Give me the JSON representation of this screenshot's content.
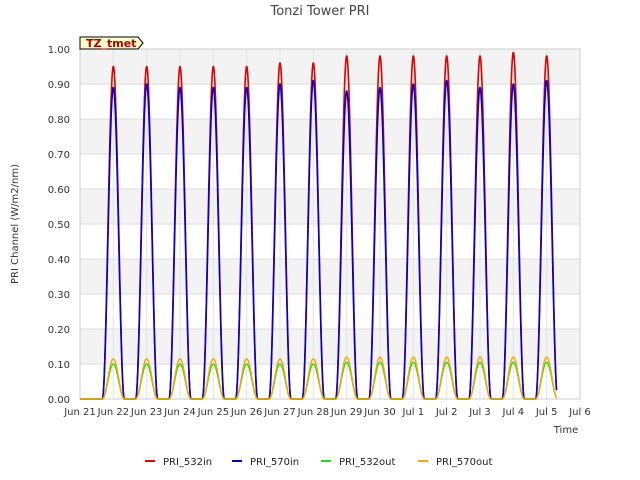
{
  "chart_data": {
    "type": "line",
    "title": "Tonzi Tower PRI",
    "xlabel": "Time",
    "ylabel": "PRI Channel (W/m2/nm)",
    "ylim": [
      0,
      1.0
    ],
    "xlim": [
      0,
      15
    ],
    "y_ticks": [
      "0.00",
      "0.10",
      "0.20",
      "0.30",
      "0.40",
      "0.50",
      "0.60",
      "0.70",
      "0.80",
      "0.90",
      "1.00"
    ],
    "x_ticks": [
      "Jun 21",
      "Jun 22",
      "Jun 23",
      "Jun 24",
      "Jun 25",
      "Jun 26",
      "Jun 27",
      "Jun 28",
      "Jun 29",
      "Jun 30",
      "Jul 1",
      "Jul 2",
      "Jul 3",
      "Jul 4",
      "Jul 5",
      "Jul 6"
    ],
    "annotation": "TZ_tmet",
    "grid": true,
    "legend_position": "bottom",
    "series": [
      {
        "name": "PRI_532in",
        "color": "#dd0000",
        "daily_peaks": [
          0.95,
          0.95,
          0.95,
          0.95,
          0.95,
          0.96,
          0.96,
          0.98,
          0.98,
          0.98,
          0.98,
          0.98,
          0.99,
          0.98
        ]
      },
      {
        "name": "PRI_570in",
        "color": "#0000cc",
        "daily_peaks": [
          0.89,
          0.9,
          0.89,
          0.89,
          0.89,
          0.9,
          0.91,
          0.88,
          0.89,
          0.9,
          0.91,
          0.89,
          0.9,
          0.91
        ]
      },
      {
        "name": "PRI_532out",
        "color": "#22dd22",
        "daily_peaks": [
          0.1,
          0.1,
          0.1,
          0.1,
          0.1,
          0.1,
          0.1,
          0.105,
          0.105,
          0.105,
          0.105,
          0.105,
          0.105,
          0.105
        ]
      },
      {
        "name": "PRI_570out",
        "color": "#ffa500",
        "daily_peaks": [
          0.115,
          0.115,
          0.115,
          0.115,
          0.115,
          0.115,
          0.115,
          0.12,
          0.12,
          0.12,
          0.12,
          0.12,
          0.12,
          0.12
        ]
      }
    ],
    "day_centers": [
      1.0,
      2.0,
      3.0,
      4.0,
      5.0,
      6.0,
      7.0,
      8.0,
      9.0,
      10.0,
      11.0,
      12.0,
      13.0,
      14.0
    ],
    "day_half_width": 0.33
  }
}
